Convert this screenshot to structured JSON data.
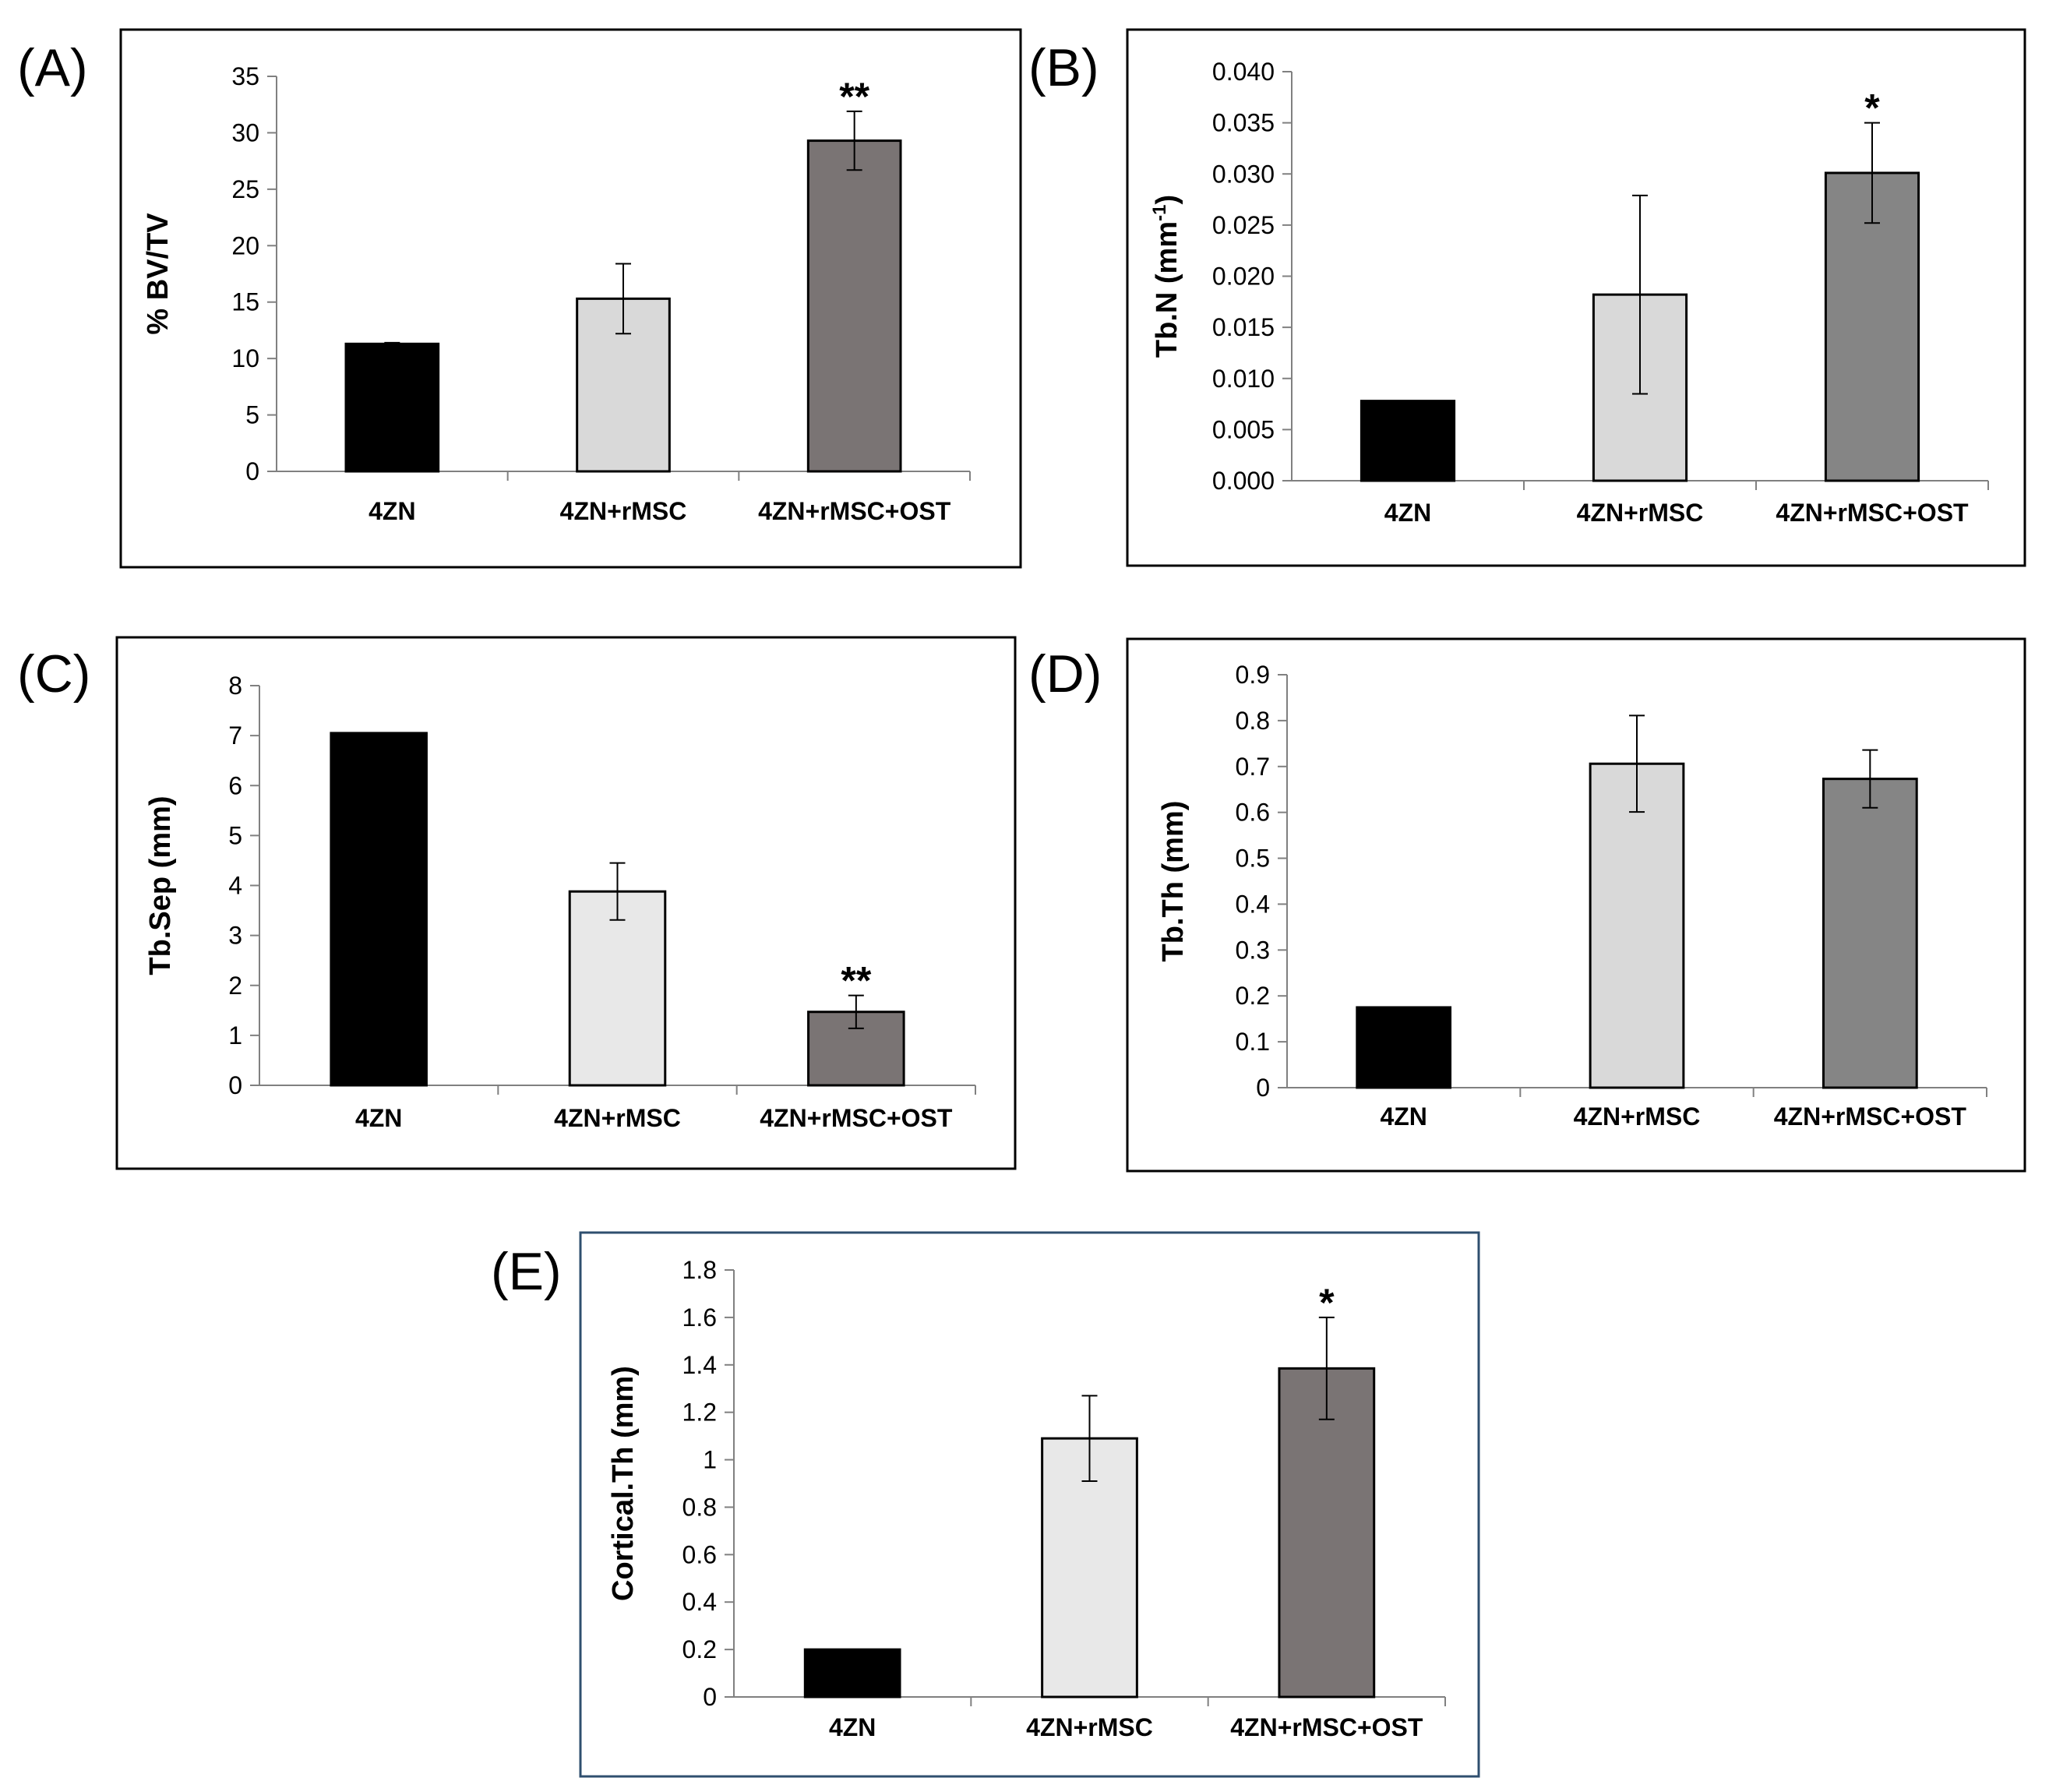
{
  "figure": {
    "colors": {
      "black": "#000000",
      "light": "#d9d9d9",
      "lighter": "#e8e8e8",
      "dark": "#7a7474",
      "mid": "#858585",
      "frame": "#000000",
      "frame_blue": "#2f4f6f"
    }
  },
  "chart_data": [
    {
      "panel": "(A)",
      "type": "bar",
      "categories": [
        "4ZN",
        "4ZN+rMSC",
        "4ZN+rMSC+OST"
      ],
      "values": [
        11.3,
        15.3,
        29.3
      ],
      "errors": [
        0.1,
        3.1,
        2.6
      ],
      "annotations": [
        "",
        "",
        "**"
      ],
      "ylabel": "% BV/TV",
      "xlabel": "",
      "ylim": [
        0,
        35
      ],
      "yticks": [
        "0",
        "5",
        "10",
        "15",
        "20",
        "25",
        "30",
        "35"
      ],
      "bar_colors": [
        "#000000",
        "#d9d9d9",
        "#7a7474"
      ]
    },
    {
      "panel": "(B)",
      "type": "bar",
      "categories": [
        "4ZN",
        "4ZN+rMSC",
        "4ZN+rMSC+OST"
      ],
      "values": [
        0.0078,
        0.0182,
        0.0301
      ],
      "errors": [
        0,
        0.0097,
        0.0049
      ],
      "annotations": [
        "",
        "",
        "*"
      ],
      "ylabel_base": "Tb.N (mm",
      "ylabel_sup": "-1",
      "ylabel_end": ")",
      "xlabel": "",
      "ylim": [
        0,
        0.04
      ],
      "yticks": [
        "0.000",
        "0.005",
        "0.010",
        "0.015",
        "0.020",
        "0.025",
        "0.030",
        "0.035",
        "0.040"
      ],
      "bar_colors": [
        "#000000",
        "#d9d9d9",
        "#858585"
      ]
    },
    {
      "panel": "(C)",
      "type": "bar",
      "categories": [
        "4ZN",
        "4ZN+rMSC",
        "4ZN+rMSC+OST"
      ],
      "values": [
        7.05,
        3.88,
        1.47
      ],
      "errors": [
        0,
        0.57,
        0.33
      ],
      "annotations": [
        "",
        "",
        "**"
      ],
      "ylabel": "Tb.Sep (mm)",
      "xlabel": "",
      "ylim": [
        0,
        8
      ],
      "yticks": [
        "0",
        "1",
        "2",
        "3",
        "4",
        "5",
        "6",
        "7",
        "8"
      ],
      "bar_colors": [
        "#000000",
        "#e8e8e8",
        "#7a7474"
      ]
    },
    {
      "panel": "(D)",
      "type": "bar",
      "categories": [
        "4ZN",
        "4ZN+rMSC",
        "4ZN+rMSC+OST"
      ],
      "values": [
        0.175,
        0.706,
        0.673
      ],
      "errors": [
        0,
        0.105,
        0.063
      ],
      "annotations": [
        "",
        "",
        ""
      ],
      "ylabel": "Tb.Th (mm)",
      "xlabel": "",
      "ylim": [
        0,
        0.9
      ],
      "yticks": [
        "0",
        "0.1",
        "0.2",
        "0.3",
        "0.4",
        "0.5",
        "0.6",
        "0.7",
        "0.8",
        "0.9"
      ],
      "bar_colors": [
        "#000000",
        "#d9d9d9",
        "#858585"
      ]
    },
    {
      "panel": "(E)",
      "type": "bar",
      "categories": [
        "4ZN",
        "4ZN+rMSC",
        "4ZN+rMSC+OST"
      ],
      "values": [
        0.2,
        1.09,
        1.385
      ],
      "errors": [
        0,
        0.18,
        0.215
      ],
      "annotations": [
        "",
        "",
        "*"
      ],
      "ylabel": "Cortical.Th (mm)",
      "xlabel": "",
      "ylim": [
        0,
        1.8
      ],
      "yticks": [
        "0",
        "0.2",
        "0.4",
        "0.6",
        "0.8",
        "1",
        "1.2",
        "1.4",
        "1.6",
        "1.8"
      ],
      "bar_colors": [
        "#000000",
        "#e8e8e8",
        "#7a7474"
      ]
    }
  ]
}
